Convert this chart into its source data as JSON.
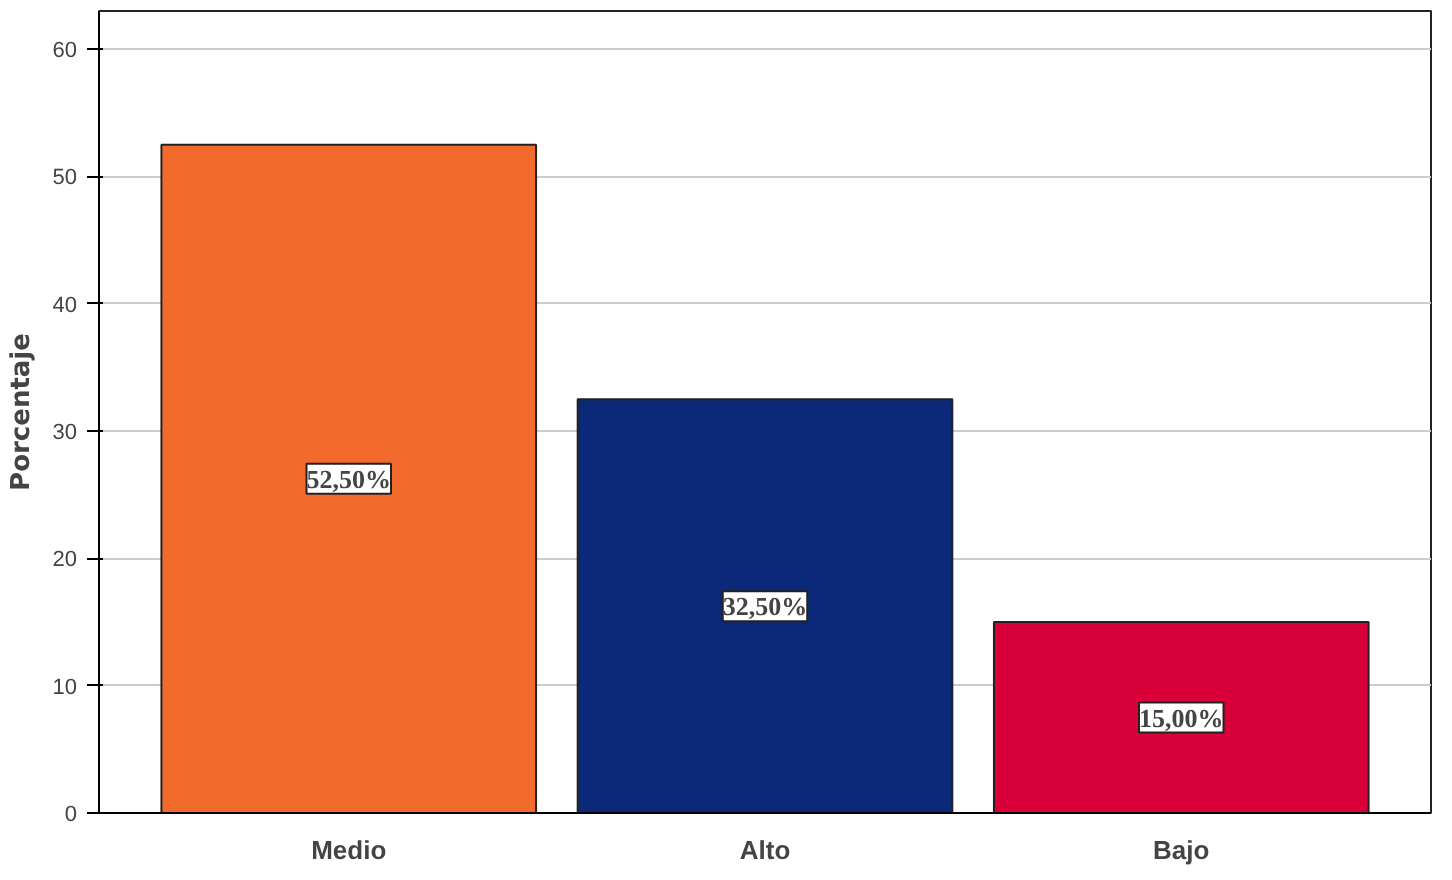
{
  "chart_data": {
    "type": "bar",
    "ylabel": "Porcentaje",
    "categories": [
      "Medio",
      "Alto",
      "Bajo"
    ],
    "values": [
      52.5,
      32.5,
      15.0
    ],
    "colors": [
      "#f26b2d",
      "#0c2878",
      "#d9003a"
    ],
    "value_labels": [
      "52,50%",
      "32,50%",
      "15,00%"
    ],
    "ylim": [
      0,
      63
    ],
    "yticks": [
      0,
      10,
      20,
      30,
      40,
      50,
      60
    ],
    "grid": "y"
  }
}
